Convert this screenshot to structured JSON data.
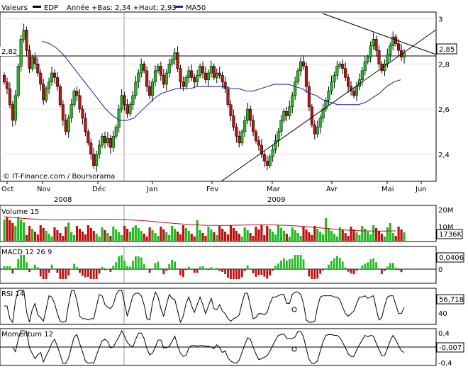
{
  "header": {
    "values_label": "Valeurs",
    "symbol": "EDP",
    "range_text": "Année +Bas: 2,34 +Haut: 2,93",
    "ma_legend": "MA50",
    "colors": {
      "ma": "#1a1aa8",
      "symbol_swatch": "#000000"
    }
  },
  "price_panel": {
    "y_ticks": [
      "3",
      "2,8",
      "2,6",
      "2,4"
    ],
    "y_values": [
      3.0,
      2.8,
      2.6,
      2.4
    ],
    "ref_label": "2,82",
    "ref_value": 2.82,
    "last_label": "2,85",
    "last_value": 2.85,
    "watermark": "© IT-Finance.com / Boursorama",
    "colors": {
      "up": "#22bb22",
      "down": "#bb1111"
    }
  },
  "x_axis": {
    "months": [
      "Oct",
      "Nov",
      "Déc",
      "Jan",
      "Fev",
      "Mar",
      "Avr",
      "Mai",
      "Jun"
    ],
    "years": [
      "2008",
      "2009"
    ]
  },
  "volume_panel": {
    "title": "Volume 15",
    "y_ticks": [
      "20M",
      "10M"
    ],
    "last_label": "1736K",
    "colors": {
      "up": "#22bb22",
      "down": "#bb1111",
      "ma": "#bb1111"
    }
  },
  "macd_panel": {
    "title": "MACD 12 26 9",
    "y_ticks": [
      "0"
    ],
    "last_label": "0,0406"
  },
  "rsi_panel": {
    "title": "RSI 14",
    "y_ticks": [
      "40"
    ],
    "last_label": "56,718"
  },
  "momentum_panel": {
    "title": "Momentum 12",
    "y_ticks": [
      "0,4",
      "0",
      "-0,4"
    ],
    "last_label": "-0,007"
  },
  "chart_data": [
    {
      "type": "candlestick",
      "title": "EDP",
      "x_range": [
        "Oct 2008",
        "Jun 2009"
      ],
      "ylim": [
        2.28,
        3.03
      ],
      "y_ticks": [
        3.0,
        2.8,
        2.6,
        2.4
      ],
      "grid": true,
      "year_low": 2.34,
      "year_high": 2.93,
      "reference_line": 2.82,
      "last_price": 2.85,
      "series": [
        {
          "name": "EDP",
          "closes": [
            2.72,
            2.69,
            2.62,
            2.55,
            2.66,
            2.79,
            2.91,
            2.95,
            2.86,
            2.78,
            2.83,
            2.8,
            2.76,
            2.71,
            2.64,
            2.69,
            2.72,
            2.76,
            2.74,
            2.7,
            2.62,
            2.55,
            2.5,
            2.56,
            2.62,
            2.68,
            2.66,
            2.6,
            2.56,
            2.5,
            2.45,
            2.4,
            2.35,
            2.4,
            2.44,
            2.48,
            2.45,
            2.47,
            2.43,
            2.48,
            2.52,
            2.6,
            2.66,
            2.62,
            2.58,
            2.62,
            2.66,
            2.72,
            2.76,
            2.8,
            2.77,
            2.7,
            2.66,
            2.72,
            2.77,
            2.79,
            2.75,
            2.71,
            2.76,
            2.8,
            2.82,
            2.85,
            2.78,
            2.72,
            2.7,
            2.74,
            2.77,
            2.74,
            2.72,
            2.75,
            2.79,
            2.76,
            2.73,
            2.76,
            2.79,
            2.74,
            2.76,
            2.75,
            2.72,
            2.69,
            2.62,
            2.57,
            2.52,
            2.48,
            2.45,
            2.5,
            2.55,
            2.6,
            2.55,
            2.5,
            2.46,
            2.44,
            2.4,
            2.37,
            2.35,
            2.39,
            2.42,
            2.46,
            2.5,
            2.55,
            2.59,
            2.57,
            2.61,
            2.66,
            2.72,
            2.77,
            2.81,
            2.79,
            2.7,
            2.61,
            2.53,
            2.49,
            2.52,
            2.56,
            2.6,
            2.64,
            2.68,
            2.72,
            2.75,
            2.79,
            2.8,
            2.78,
            2.74,
            2.7,
            2.68,
            2.66,
            2.7,
            2.73,
            2.77,
            2.81,
            2.83,
            2.88,
            2.91,
            2.86,
            2.8,
            2.77,
            2.8,
            2.84,
            2.88,
            2.92,
            2.89,
            2.86,
            2.83,
            2.85
          ]
        },
        {
          "name": "MA50",
          "values": [
            2.9,
            2.89,
            2.87,
            2.84,
            2.8,
            2.76,
            2.72,
            2.68,
            2.64,
            2.6,
            2.57,
            2.55,
            2.55,
            2.56,
            2.59,
            2.62,
            2.65,
            2.67,
            2.68,
            2.69,
            2.69,
            2.69,
            2.7,
            2.7,
            2.7,
            2.7,
            2.7,
            2.69,
            2.69,
            2.68,
            2.68,
            2.69,
            2.7,
            2.71,
            2.71,
            2.71,
            2.7,
            2.69,
            2.67,
            2.66,
            2.64,
            2.63,
            2.62,
            2.62,
            2.62,
            2.62,
            2.63,
            2.65,
            2.67,
            2.7,
            2.72,
            2.73
          ]
        }
      ]
    },
    {
      "type": "bar",
      "title": "Volume 15",
      "ylim": [
        0,
        20000000
      ],
      "y_ticks": [
        20000000,
        10000000
      ],
      "last_value_label": "1736K"
    },
    {
      "type": "bar",
      "title": "MACD 12 26 9",
      "y_ticks": [
        0
      ],
      "last_value": 0.0406
    },
    {
      "type": "line",
      "title": "RSI 14",
      "y_ticks": [
        40
      ],
      "last_value": 56.718
    },
    {
      "type": "line",
      "title": "Momentum 12",
      "ylim": [
        -0.4,
        0.4
      ],
      "y_ticks": [
        0.4,
        0,
        -0.4
      ],
      "last_value": -0.007
    }
  ]
}
